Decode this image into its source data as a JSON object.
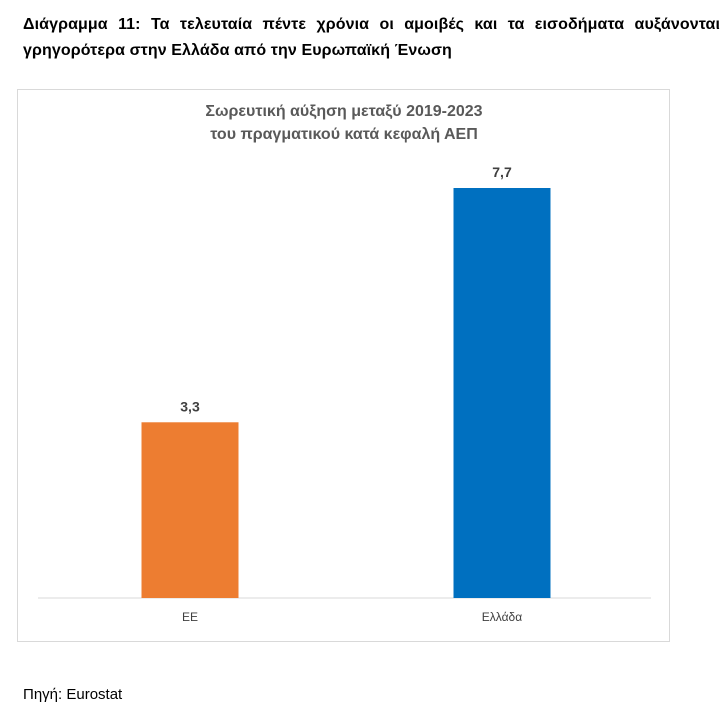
{
  "page": {
    "heading": "Διάγραμμα 11: Τα τελευταία πέντε χρόνια οι αμοιβές και τα εισοδήματα αυξάνονται γρηγορότερα στην Ελλάδα από την Ευρωπαϊκή Ένωση",
    "source": "Πηγή: Eurostat"
  },
  "chart_data": {
    "type": "bar",
    "title": [
      "Σωρευτική αύξηση μεταξύ 2019-2023",
      "του πραγματικού κατά κεφαλή ΑΕΠ"
    ],
    "categories": [
      "ΕΕ",
      "Ελλάδα"
    ],
    "values": [
      3.3,
      7.7
    ],
    "value_labels": [
      "3,3",
      "7,7"
    ],
    "colors": [
      "#ED7D31",
      "#0070C0"
    ],
    "title_color": "#595959",
    "ylim": [
      0,
      7.7
    ],
    "grid": false,
    "legend": "none"
  }
}
